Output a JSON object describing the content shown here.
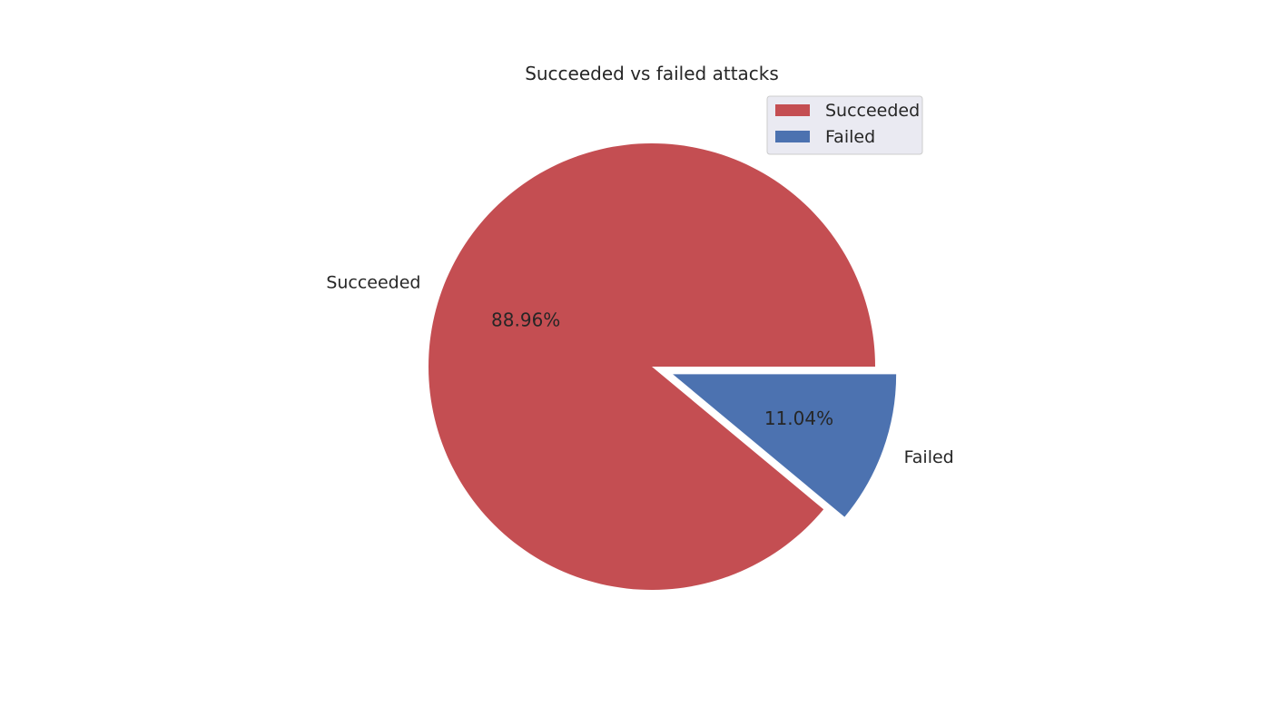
{
  "chart_data": {
    "type": "pie",
    "title": "Succeeded vs failed attacks",
    "labels": [
      "Succeeded",
      "Failed"
    ],
    "values": [
      88.96,
      11.04
    ],
    "value_labels": [
      "88.96%",
      "11.04%"
    ],
    "colors": [
      "#c44e52",
      "#4c72b0"
    ],
    "explode": [
      0,
      0.1
    ],
    "start_angle_deg": 0,
    "legend": {
      "position": "upper-right",
      "entries": [
        "Succeeded",
        "Failed"
      ]
    }
  }
}
